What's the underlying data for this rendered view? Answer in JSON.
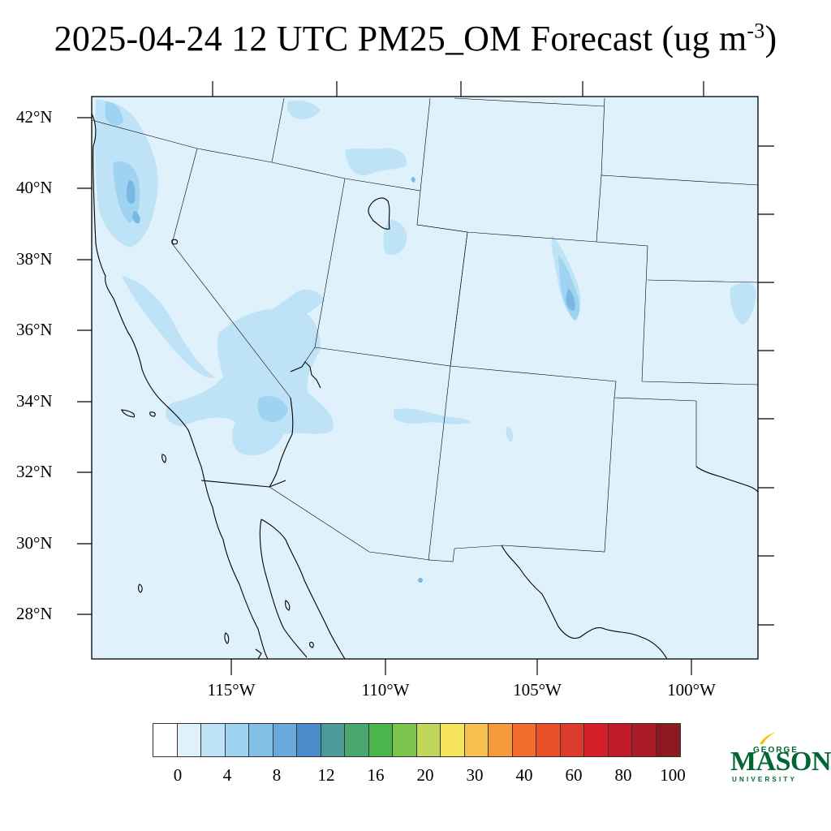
{
  "title": {
    "main": "2025-04-24 12 UTC PM25_OM Forecast (ug m",
    "superscript": "-3",
    "close": ")"
  },
  "map": {
    "background_color": "#dff1fb",
    "light_plume_color": "#bfe3f6",
    "mid_plume_color": "#9fd3f2",
    "dark_plume_color": "#7ab8e3",
    "lat_labels": [
      "42°N",
      "40°N",
      "38°N",
      "36°N",
      "34°N",
      "32°N",
      "30°N",
      "28°N"
    ],
    "lon_labels": [
      "115°W",
      "110°W",
      "105°W",
      "100°W"
    ]
  },
  "colorbar": {
    "colors": [
      "#ffffff",
      "#dff1fb",
      "#bfe3f6",
      "#9fd3f2",
      "#82c0e8",
      "#68a8dc",
      "#4a8cc9",
      "#4a9a9a",
      "#4aa56e",
      "#4ab54a",
      "#7cc24f",
      "#c2d65a",
      "#f5e45a",
      "#f7c04e",
      "#f59a3a",
      "#f26d2a",
      "#e8502a",
      "#dc3a2a",
      "#d41e2a",
      "#c01c28",
      "#a81a24",
      "#8c1820"
    ],
    "labels": [
      "0",
      "4",
      "8",
      "12",
      "16",
      "20",
      "30",
      "40",
      "60",
      "80",
      "100"
    ]
  },
  "logo": {
    "line1": "GEORGE",
    "line2": "MASON",
    "line3": "UNIVERSITY"
  }
}
